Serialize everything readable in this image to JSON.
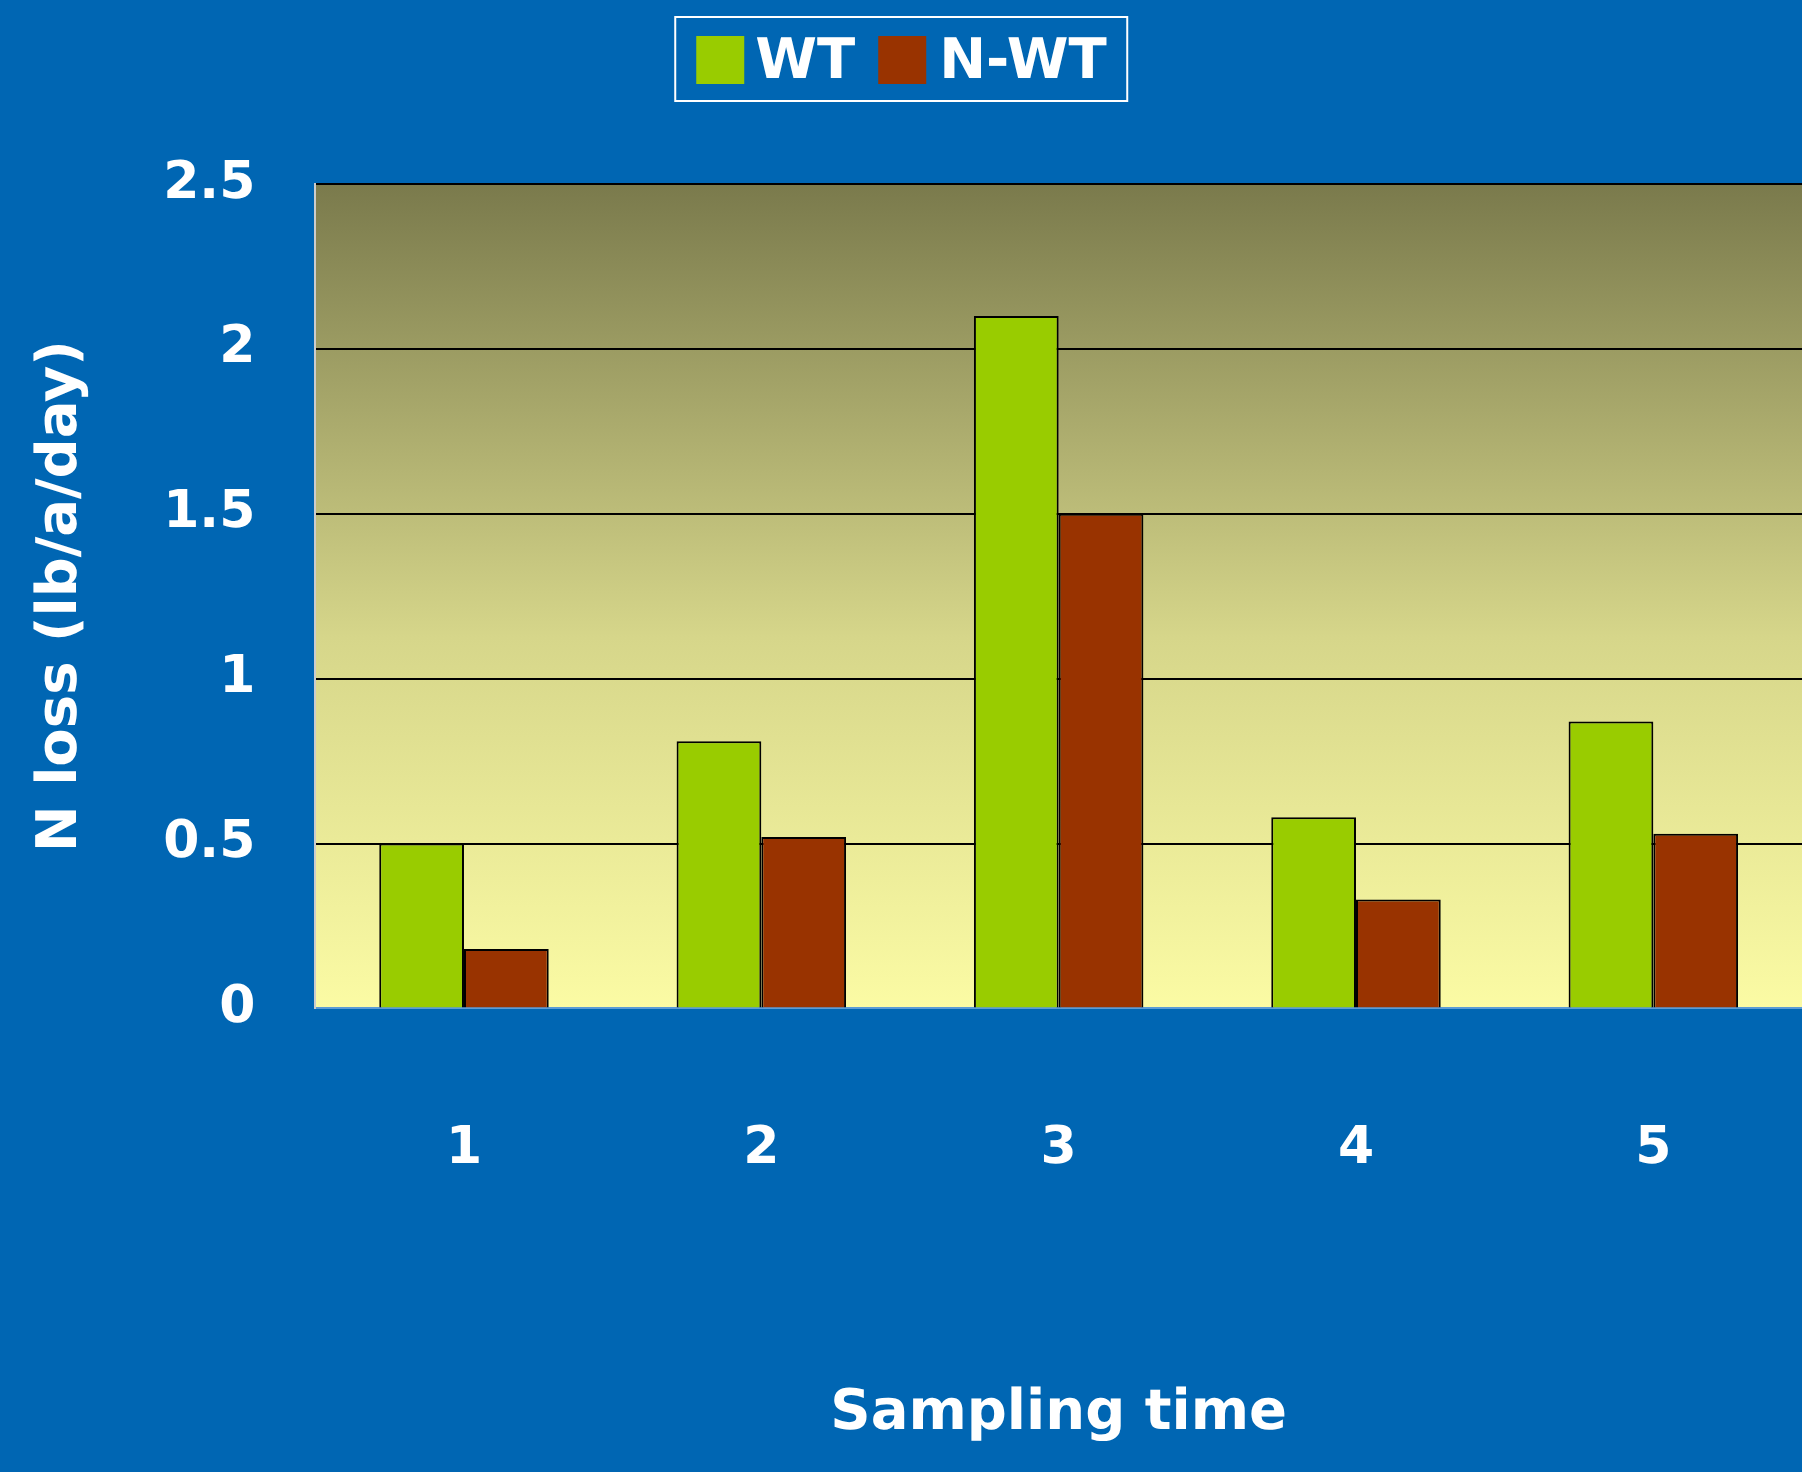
{
  "chart_data": {
    "type": "bar",
    "xlabel": "Sampling time",
    "ylabel": "N loss (lb/a/day)",
    "categories": [
      "1",
      "2",
      "3",
      "4",
      "5"
    ],
    "series": [
      {
        "name": "WT",
        "color": "#99cc00",
        "values": [
          0.5,
          0.81,
          2.1,
          0.58,
          0.87
        ]
      },
      {
        "name": "N-WT",
        "color": "#993300",
        "values": [
          0.18,
          0.52,
          1.5,
          0.33,
          0.53
        ]
      }
    ],
    "ylim": [
      0,
      2.5
    ],
    "yticks": [
      0,
      0.5,
      1,
      1.5,
      2,
      2.5
    ],
    "grid": "y",
    "legend": "top"
  }
}
